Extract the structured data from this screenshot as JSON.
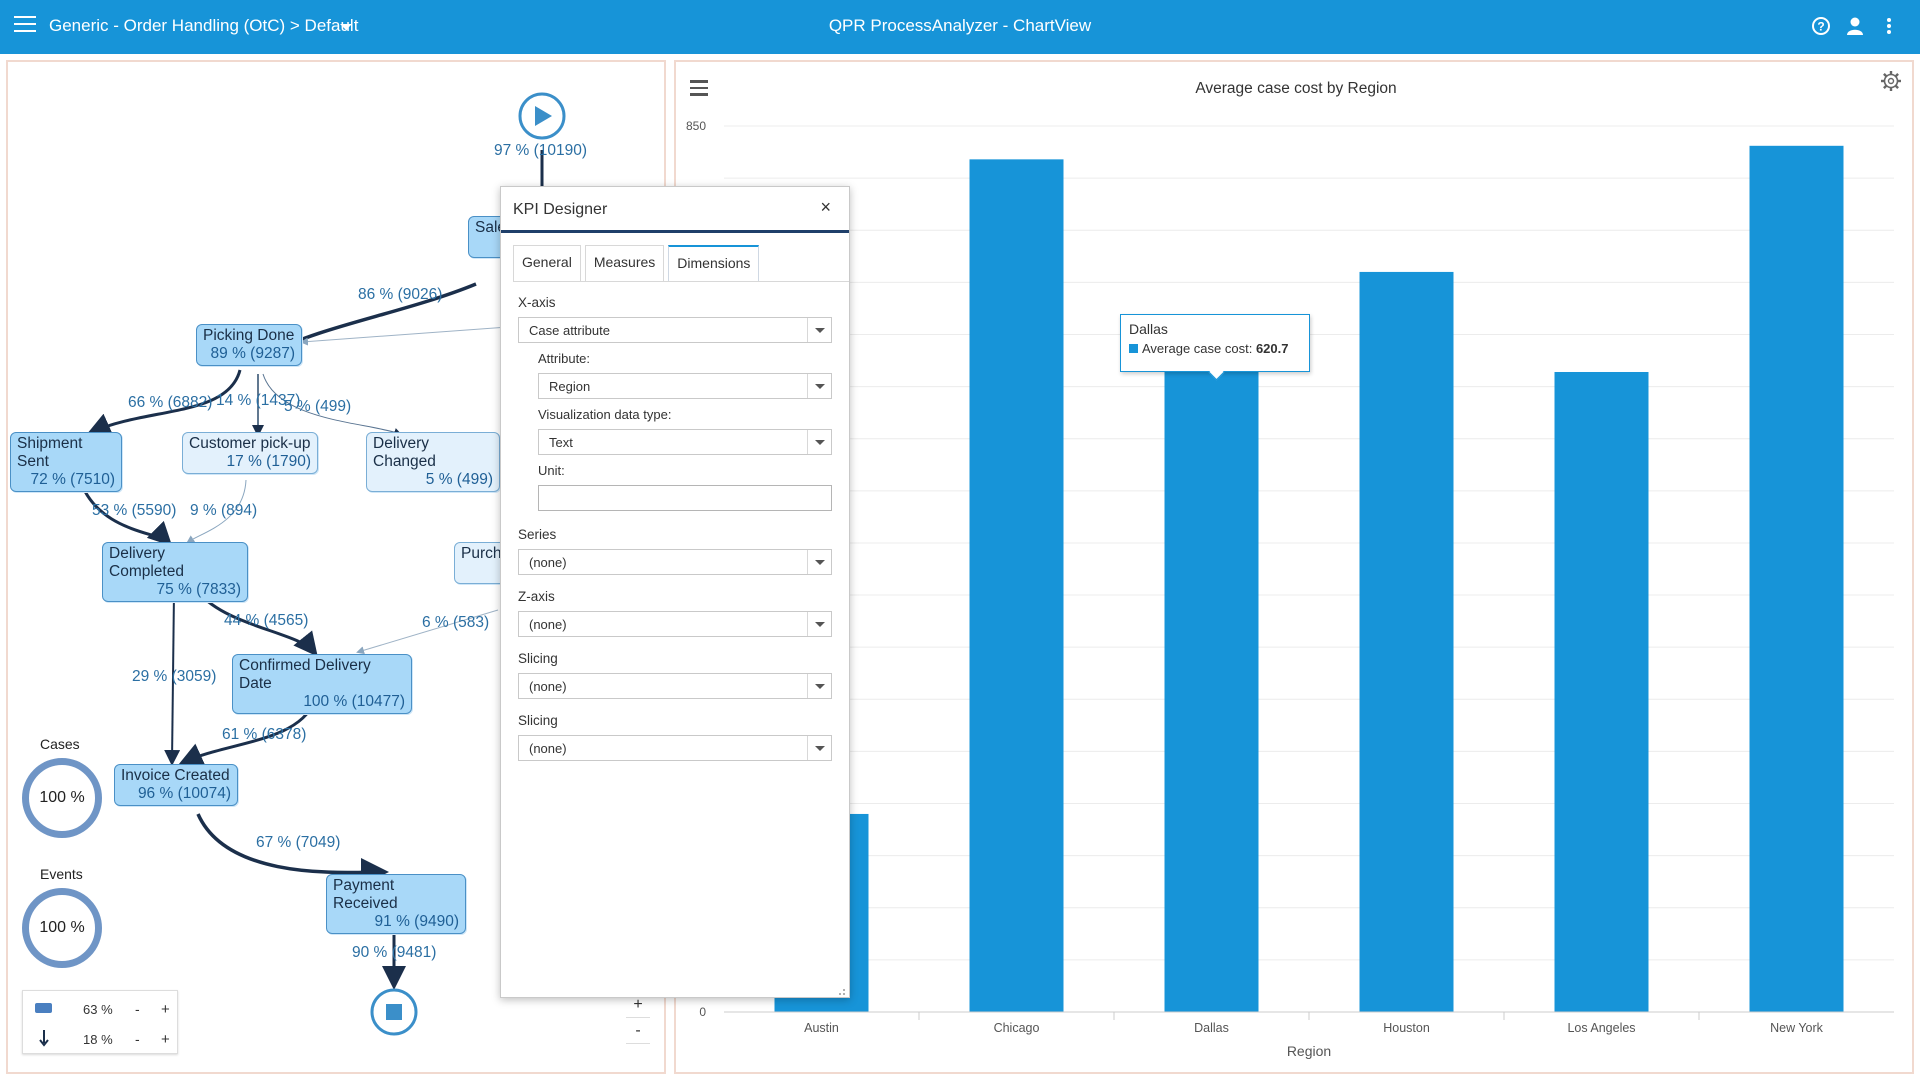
{
  "topbar": {
    "project": "Generic - Order Handling (OtC) > Default",
    "app_title": "QPR ProcessAnalyzer - ChartView",
    "icons": [
      "menu-icon",
      "help-icon",
      "user-icon",
      "more-icon"
    ]
  },
  "process_map": {
    "start_label": "97 % (10190)",
    "nodes": {
      "sales": "Sale",
      "picking": {
        "name": "Picking Done",
        "pct": "89 % (9287)"
      },
      "shipment": {
        "name": "Shipment Sent",
        "pct": "72 % (7510)"
      },
      "pickup": {
        "name": "Customer pick-up",
        "pct": "17 % (1790)"
      },
      "delivery_changed": {
        "name": "Delivery Changed",
        "pct": "5 % (499)"
      },
      "delivery_completed": {
        "name": "Delivery Completed",
        "pct": "75 % (7833)"
      },
      "purchase": "Purcha",
      "confirmed": {
        "name": "Confirmed Delivery Date",
        "pct": "100 % (10477)"
      },
      "invoice": {
        "name": "Invoice Created",
        "pct": "96 % (10074)"
      },
      "payment": {
        "name": "Payment Received",
        "pct": "91 % (9490)"
      }
    },
    "edges": {
      "e_sales_picking": "86 % (9026)",
      "e_pick_ship": "66 % (6882)",
      "e_pick_pickup": "14 % (1437)",
      "e_pick_changed": "5 % (499)",
      "e_ship_completed": "53 % (5590)",
      "e_pickup_completed": "9 % (894)",
      "e_completed_confirmed": "44 % (4565)",
      "e_purchase_confirmed": "6 % (583)",
      "e_completed_invoice": "29 % (3059)",
      "e_confirmed_invoice": "61 % (6378)",
      "e_invoice_payment": "67 % (7049)",
      "e_payment_end": "90 % (9481)"
    },
    "stats": {
      "cases_label": "Cases",
      "cases_value": "100 %",
      "events_label": "Events",
      "events_value": "100 %"
    },
    "legend": {
      "nodes_pct": "63 %",
      "edges_pct": "18 %",
      "minus": "-",
      "plus": "+"
    },
    "zoom": {
      "plus": "+",
      "minus": "-"
    }
  },
  "kpi_designer": {
    "title": "KPI Designer",
    "close": "×",
    "tabs": [
      "General",
      "Measures",
      "Dimensions"
    ],
    "active_tab": "Dimensions",
    "xaxis_label": "X-axis",
    "xaxis_value": "Case attribute",
    "attribute_label": "Attribute:",
    "attribute_value": "Region",
    "vis_type_label": "Visualization data type:",
    "vis_type_value": "Text",
    "unit_label": "Unit:",
    "unit_value": "",
    "series_label": "Series",
    "series_value": "(none)",
    "zaxis_label": "Z-axis",
    "zaxis_value": "(none)",
    "slicing1_label": "Slicing",
    "slicing1_value": "(none)",
    "slicing2_label": "Slicing",
    "slicing2_value": "(none)"
  },
  "chart": {
    "title": "Average case cost by Region",
    "tooltip": {
      "city": "Dallas",
      "series": "Average case cost:",
      "value": "620.7"
    }
  },
  "chart_data": {
    "type": "bar",
    "title": "Average case cost by Region",
    "xlabel": "Region",
    "ylabel": "",
    "categories": [
      "Austin",
      "Chicago",
      "Dallas",
      "Houston",
      "Los Angeles",
      "New York"
    ],
    "series": [
      {
        "name": "Average case cost",
        "values": [
          190,
          818,
          620.7,
          710,
          614,
          831
        ]
      }
    ],
    "ylim": [
      0,
      850
    ],
    "y_tick_labels_visible": [
      "0",
      "850"
    ],
    "grid": true,
    "bar_color": "#1794d8"
  }
}
